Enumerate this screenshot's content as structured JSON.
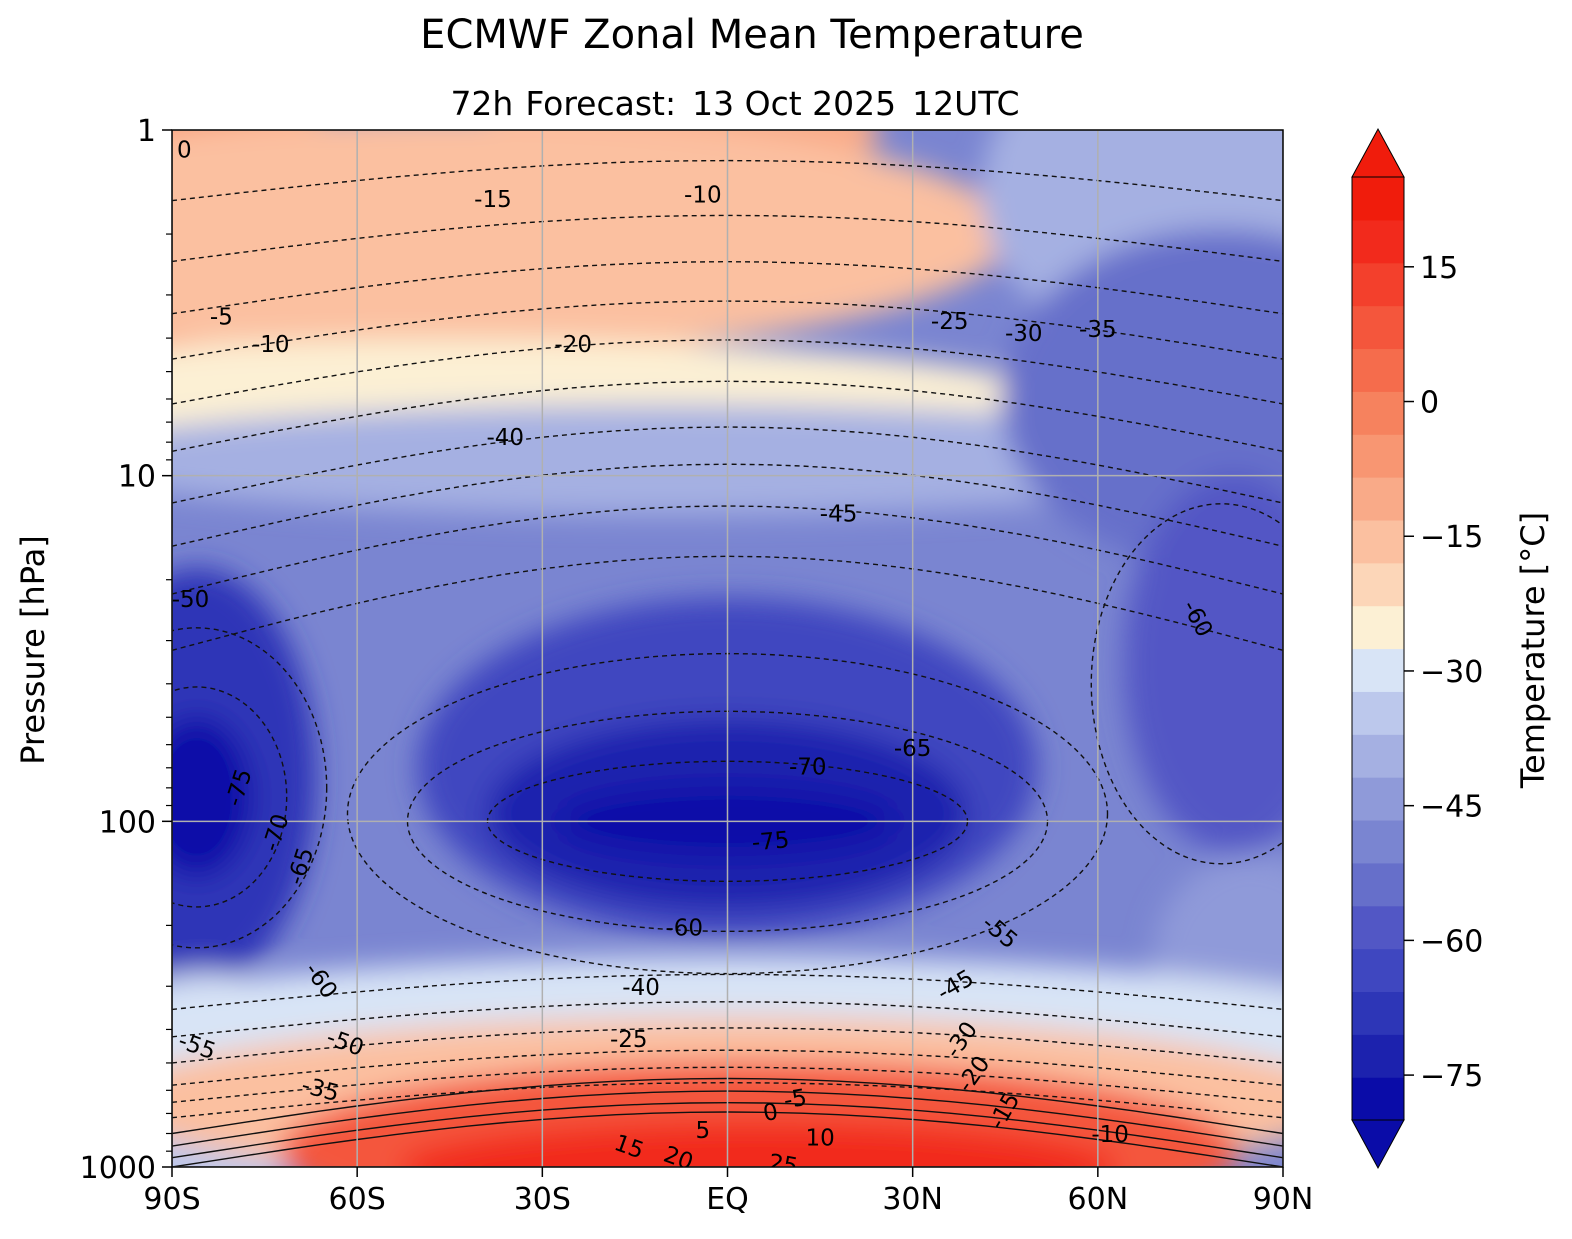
{
  "chart_data": {
    "type": "contour",
    "title": "ECMWF Zonal Mean Temperature",
    "subtitle": {
      "lead": "72h",
      "label": "Forecast:",
      "date": "13 Oct 2025",
      "time": "12UTC"
    },
    "xlabel": "",
    "ylabel": "Pressure [hPa]",
    "x_ticks": [
      {
        "value": -90,
        "label": "90S"
      },
      {
        "value": -60,
        "label": "60S"
      },
      {
        "value": -30,
        "label": "30S"
      },
      {
        "value": 0,
        "label": "EQ"
      },
      {
        "value": 30,
        "label": "30N"
      },
      {
        "value": 60,
        "label": "60N"
      },
      {
        "value": 90,
        "label": "90N"
      }
    ],
    "y_ticks": [
      {
        "value": 1,
        "label": "1"
      },
      {
        "value": 10,
        "label": "10"
      },
      {
        "value": 100,
        "label": "100"
      },
      {
        "value": 1000,
        "label": "1000"
      }
    ],
    "xlim": [
      -90,
      90
    ],
    "ylim": [
      1000,
      1
    ],
    "y_scale": "log",
    "grid": true,
    "colorbar": {
      "label": "Temperature [°C]",
      "range": [
        -80,
        25
      ],
      "step": 5,
      "extend": "both",
      "ticks": [
        {
          "value": 15,
          "label": "15"
        },
        {
          "value": 0,
          "label": "0"
        },
        {
          "value": -15,
          "label": "−15"
        },
        {
          "value": -30,
          "label": "−30"
        },
        {
          "value": -45,
          "label": "−45"
        },
        {
          "value": -60,
          "label": "−60"
        },
        {
          "value": -75,
          "label": "−75"
        }
      ],
      "colors": [
        "#0a0ca8",
        "#1c22ae",
        "#2d36b7",
        "#3f47c0",
        "#5257c5",
        "#666fca",
        "#7a85d1",
        "#8f9ad9",
        "#a5b0e2",
        "#bcc8ec",
        "#d8e4f6",
        "#fcf0d4",
        "#fcd6b8",
        "#fbc0a0",
        "#f9aa88",
        "#f89672",
        "#f6825e",
        "#f56c4c",
        "#f4563c",
        "#f3402c",
        "#f22a1c",
        "#f01c0c"
      ]
    },
    "contour_labels": [
      {
        "text": "0",
        "lat": -88,
        "p": 1.15,
        "rot": 0
      },
      {
        "text": "-15",
        "lat": -38,
        "p": 1.6,
        "rot": 0
      },
      {
        "text": "-10",
        "lat": -4,
        "p": 1.55,
        "rot": 0
      },
      {
        "text": "-5",
        "lat": -82,
        "p": 3.5,
        "rot": 0
      },
      {
        "text": "-10",
        "lat": -74,
        "p": 4.2,
        "rot": 0
      },
      {
        "text": "-20",
        "lat": -25,
        "p": 4.2,
        "rot": 0
      },
      {
        "text": "-25",
        "lat": 36,
        "p": 3.6,
        "rot": 0
      },
      {
        "text": "-30",
        "lat": 48,
        "p": 3.9,
        "rot": 0
      },
      {
        "text": "-35",
        "lat": 60,
        "p": 3.8,
        "rot": 0
      },
      {
        "text": "-40",
        "lat": -36,
        "p": 7.8,
        "rot": 0
      },
      {
        "text": "-45",
        "lat": 18,
        "p": 13,
        "rot": 0
      },
      {
        "text": "-50",
        "lat": -87,
        "p": 23,
        "rot": 0
      },
      {
        "text": "-60",
        "lat": 76,
        "p": 26,
        "rot": 62
      },
      {
        "text": "-70",
        "lat": 13,
        "p": 70,
        "rot": 0
      },
      {
        "text": "-65",
        "lat": 30,
        "p": 62,
        "rot": 0
      },
      {
        "text": "-75",
        "lat": -79,
        "p": 80,
        "rot": -72
      },
      {
        "text": "-70",
        "lat": -73,
        "p": 108,
        "rot": -72
      },
      {
        "text": "-65",
        "lat": -69,
        "p": 135,
        "rot": -72
      },
      {
        "text": "-75",
        "lat": 7,
        "p": 115,
        "rot": -5
      },
      {
        "text": "-60",
        "lat": -7,
        "p": 205,
        "rot": 0
      },
      {
        "text": "-55",
        "lat": 44,
        "p": 210,
        "rot": 40
      },
      {
        "text": "-60",
        "lat": -66,
        "p": 290,
        "rot": 55
      },
      {
        "text": "-40",
        "lat": -14,
        "p": 305,
        "rot": 0
      },
      {
        "text": "-45",
        "lat": 37,
        "p": 300,
        "rot": -30
      },
      {
        "text": "-55",
        "lat": -86,
        "p": 450,
        "rot": 20
      },
      {
        "text": "-50",
        "lat": -62,
        "p": 440,
        "rot": 20
      },
      {
        "text": "-25",
        "lat": -16,
        "p": 430,
        "rot": 0
      },
      {
        "text": "-30",
        "lat": 38,
        "p": 430,
        "rot": -55
      },
      {
        "text": "-20",
        "lat": 40,
        "p": 540,
        "rot": -55
      },
      {
        "text": "-35",
        "lat": -66,
        "p": 600,
        "rot": 15
      },
      {
        "text": "-5",
        "lat": 11,
        "p": 640,
        "rot": -10
      },
      {
        "text": "0",
        "lat": 7,
        "p": 700,
        "rot": -10
      },
      {
        "text": "-15",
        "lat": 45,
        "p": 690,
        "rot": -60
      },
      {
        "text": "5",
        "lat": -4,
        "p": 790,
        "rot": 0
      },
      {
        "text": "10",
        "lat": 15,
        "p": 830,
        "rot": 0
      },
      {
        "text": "-10",
        "lat": 62,
        "p": 810,
        "rot": 0
      },
      {
        "text": "15",
        "lat": -16,
        "p": 880,
        "rot": 20
      },
      {
        "text": "20",
        "lat": -8,
        "p": 950,
        "rot": 20
      },
      {
        "text": "25",
        "lat": 9,
        "p": 990,
        "rot": 10
      }
    ]
  }
}
